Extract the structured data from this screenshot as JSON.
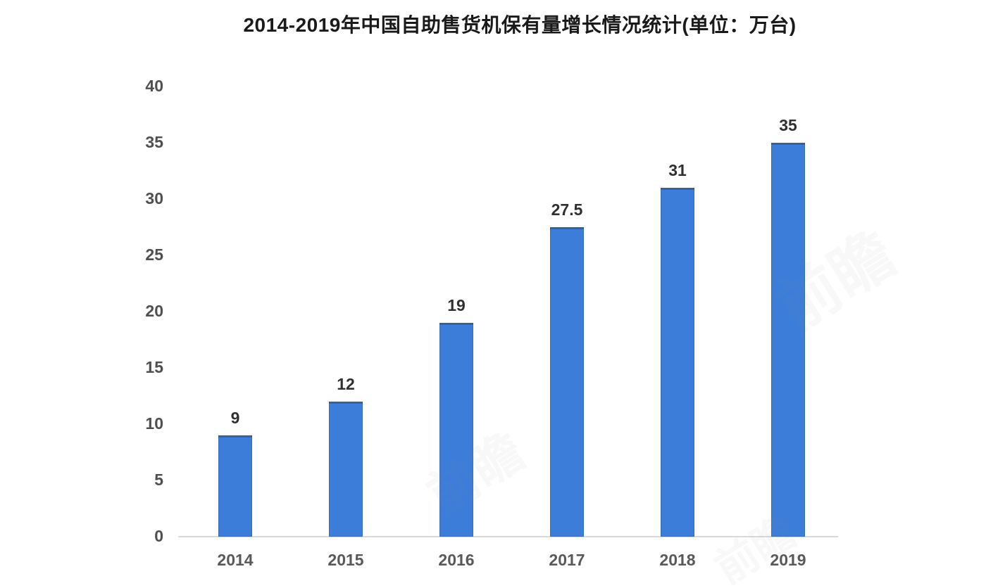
{
  "chart_data": {
    "type": "bar",
    "title": "2014-2019年中国自助售货机保有量增长情况统计(单位：万台)",
    "categories": [
      "2014",
      "2015",
      "2016",
      "2017",
      "2018",
      "2019"
    ],
    "values": [
      9,
      12,
      19,
      27.5,
      31,
      35
    ],
    "value_labels": [
      "9",
      "12",
      "19",
      "27.5",
      "31",
      "35"
    ],
    "xlabel": "",
    "ylabel": "",
    "ylim": [
      0,
      40
    ],
    "yticks": [
      0,
      5,
      10,
      15,
      20,
      25,
      30,
      35,
      40
    ],
    "grid": false,
    "legend_position": "none",
    "bar_color": "#3C7DDA",
    "axis_line_color": "#D9D9D9",
    "tick_label_color": "#4F4F4F",
    "x_label_color": "#595959",
    "data_label_color": "#303030",
    "title_color": "#1A1A1A",
    "background_color": "#FFFFFF"
  },
  "watermark": {
    "text": "前瞻"
  }
}
